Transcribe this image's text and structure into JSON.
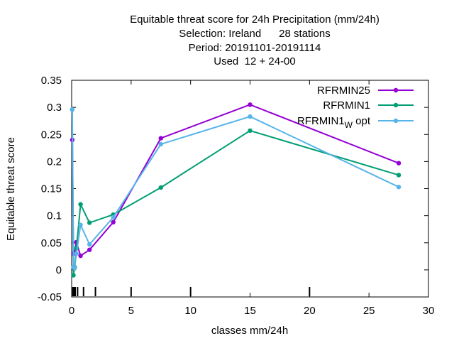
{
  "chart_data": {
    "type": "line",
    "title_lines": [
      "Equitable threat score  for 24h Precipitation (mm/24h)",
      "Selection: Ireland      28 stations",
      "Period: 20191101-20191114",
      "Used  12 + 24-00"
    ],
    "xlabel": "classes mm/24h",
    "ylabel": "Equitable threat score",
    "xlim": [
      0,
      30
    ],
    "ylim": [
      -0.05,
      0.35
    ],
    "x_ticks": [
      "0",
      "5",
      "10",
      "15",
      "20",
      "25",
      "30"
    ],
    "y_ticks": [
      "-0.05",
      "0",
      "0.05",
      "0.1",
      "0.15",
      "0.2",
      "0.25",
      "0.3",
      "0.35"
    ],
    "x_tick_values": [
      0,
      5,
      10,
      15,
      20,
      25,
      30
    ],
    "y_tick_values": [
      -0.05,
      0,
      0.05,
      0.1,
      0.15,
      0.2,
      0.25,
      0.3,
      0.35
    ],
    "class_marks": [
      0.1,
      0.2,
      0.3,
      0.5,
      1,
      2,
      5,
      10,
      20
    ],
    "legend_position": "top-right",
    "grid": false,
    "series": [
      {
        "name": "RFRMIN25",
        "color": "#9400d3",
        "x": [
          0.05,
          0.15,
          0.25,
          0.4,
          0.75,
          1.5,
          3.5,
          7.5,
          15,
          27.5
        ],
        "y": [
          0.24,
          0.03,
          0.033,
          0.051,
          0.026,
          0.037,
          0.088,
          0.243,
          0.305,
          0.197
        ]
      },
      {
        "name": "RFRMIN1",
        "color": "#009e73",
        "x": [
          0.05,
          0.15,
          0.25,
          0.4,
          0.75,
          1.5,
          3.5,
          7.5,
          15,
          27.5
        ],
        "y": [
          0.296,
          -0.01,
          0.005,
          0.04,
          0.121,
          0.087,
          0.102,
          0.152,
          0.257,
          0.175
        ]
      },
      {
        "name": "RFRMIN1",
        "name_subscript": "W",
        "name_suffix": "opt",
        "color": "#56b4e9",
        "x": [
          0.05,
          0.15,
          0.25,
          0.4,
          0.75,
          1.5,
          3.5,
          7.5,
          15,
          27.5
        ],
        "y": [
          0.296,
          0.005,
          0.003,
          0.03,
          0.083,
          0.047,
          0.097,
          0.232,
          0.283,
          0.153
        ]
      }
    ]
  }
}
